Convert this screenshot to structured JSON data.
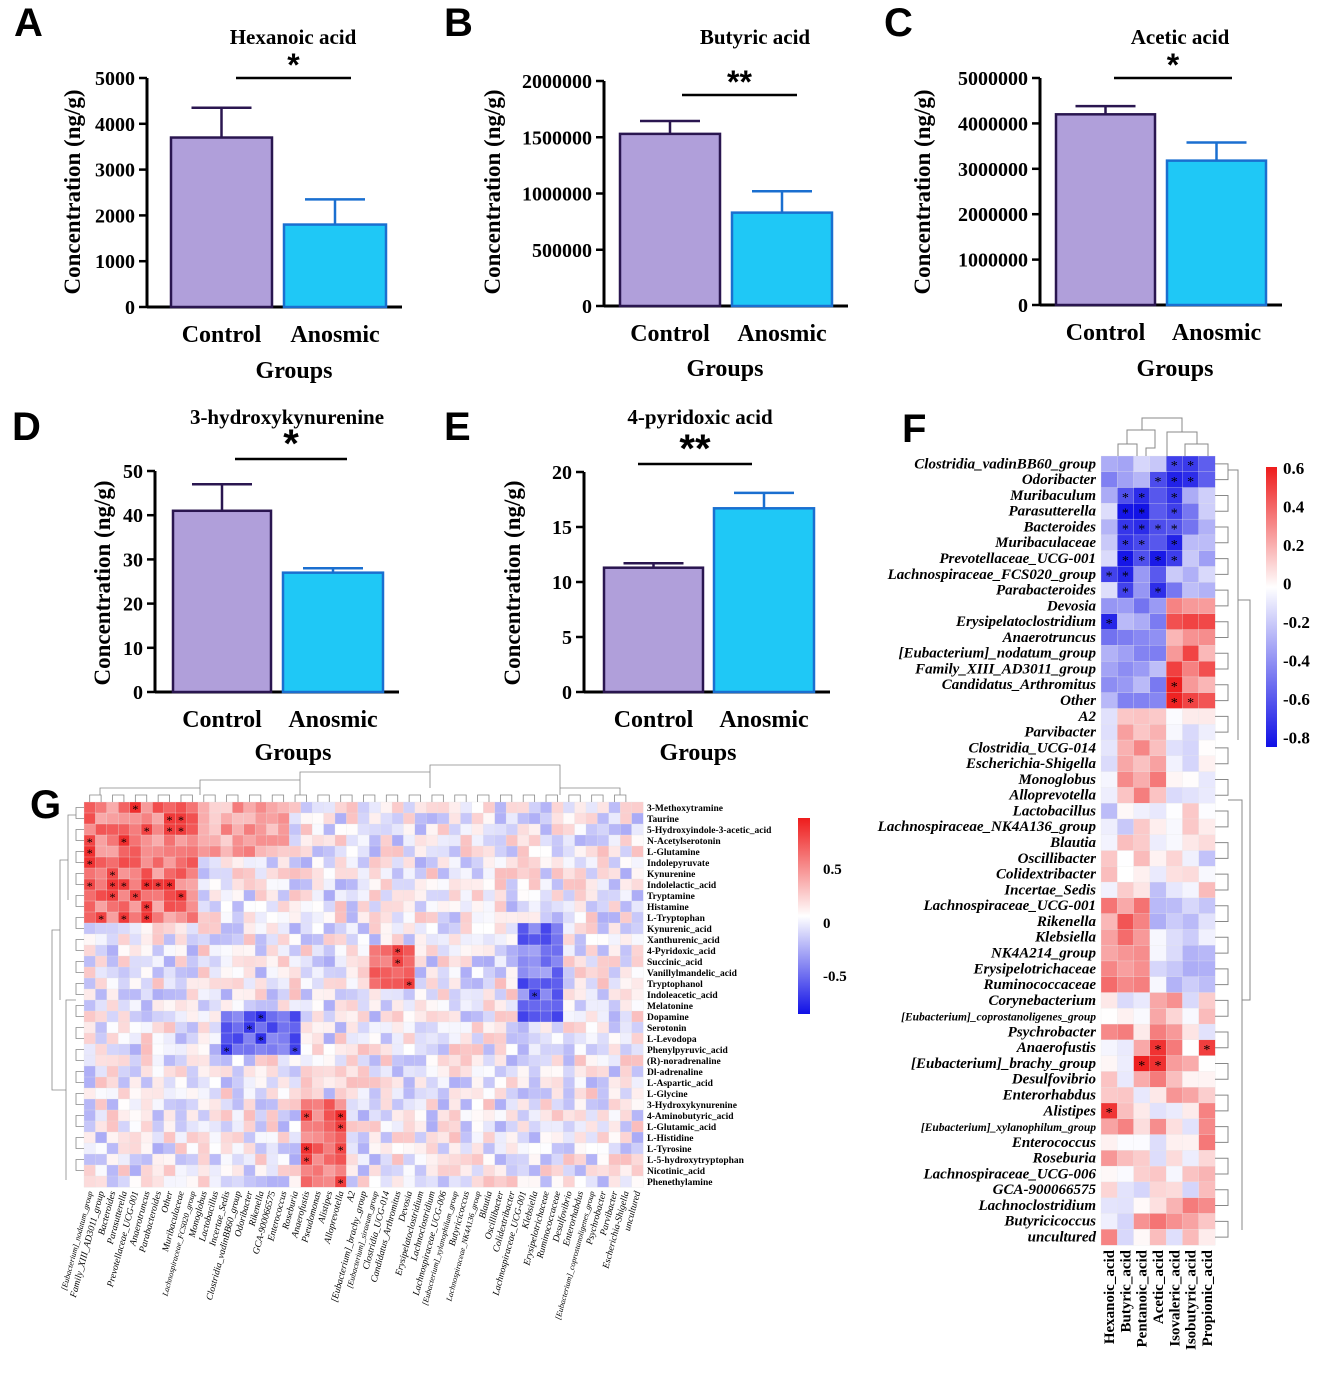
{
  "colors": {
    "control": "#b09fda",
    "anosmic": "#1fc8f6",
    "control_stroke": "#2a1650",
    "anosmic_stroke": "#1a6fd0",
    "heat_pos": "#ee1c1c",
    "heat_neg": "#1010e6"
  },
  "chart_data": [
    {
      "panel": "A",
      "type": "bar",
      "title": "Hexanoic acid",
      "categories": [
        "Control",
        "Anosmic"
      ],
      "values": [
        3700,
        1800
      ],
      "errors": [
        650,
        550
      ],
      "ylim": [
        0,
        5000
      ],
      "yticks": [
        0,
        1000,
        2000,
        3000,
        4000,
        5000
      ],
      "ylabel": "Concentration (ng/g)",
      "xlabel": "Groups",
      "significance": "*"
    },
    {
      "panel": "B",
      "type": "bar",
      "title": "Butyric acid",
      "categories": [
        "Control",
        "Anosmic"
      ],
      "values": [
        1530000,
        830000
      ],
      "errors": [
        115000,
        190000
      ],
      "ylim": [
        0,
        2000000
      ],
      "yticks": [
        0,
        500000,
        1000000,
        1500000,
        2000000
      ],
      "ylabel": "Concentration (ng/g)",
      "xlabel": "Groups",
      "significance": "**"
    },
    {
      "panel": "C",
      "type": "bar",
      "title": "Acetic acid",
      "categories": [
        "Control",
        "Anosmic"
      ],
      "values": [
        4200000,
        3180000
      ],
      "errors": [
        180000,
        400000
      ],
      "ylim": [
        0,
        5000000
      ],
      "yticks": [
        0,
        1000000,
        2000000,
        3000000,
        4000000,
        5000000
      ],
      "ylabel": "Concentration (ng/g)",
      "xlabel": "Groups",
      "significance": "*"
    },
    {
      "panel": "D",
      "type": "bar",
      "title": "3-hydroxykynurenine",
      "categories": [
        "Control",
        "Anosmic"
      ],
      "values": [
        41,
        27
      ],
      "errors": [
        6,
        1
      ],
      "ylim": [
        0,
        50
      ],
      "yticks": [
        0,
        10,
        20,
        30,
        40,
        50
      ],
      "ylabel": "Concentration (ng/g)",
      "xlabel": "Groups",
      "significance": "*"
    },
    {
      "panel": "E",
      "type": "bar",
      "title": "4-pyridoxic acid",
      "categories": [
        "Control",
        "Anosmic"
      ],
      "values": [
        11.3,
        16.7
      ],
      "errors": [
        0.4,
        1.4
      ],
      "ylim": [
        0,
        20
      ],
      "yticks": [
        0,
        5,
        10,
        15,
        20
      ],
      "ylabel": "Concentration (ng/g)",
      "xlabel": "Groups",
      "significance": "**"
    },
    {
      "panel": "F",
      "type": "heatmap",
      "rows": [
        "Clostridia_vadinBB60_group",
        "Odoribacter",
        "Muribaculum",
        "Parasutterella",
        "Bacteroides",
        "Muribaculaceae",
        "Prevotellaceae_UCG-001",
        "Lachnospiraceae_FCS020_group",
        "Parabacteroides",
        "Devosia",
        "Erysipelatoclostridium",
        "Anaerotruncus",
        "[Eubacterium]_nodatum_group",
        "Family_XIII_AD3011_group",
        "Candidatus_Arthromitus",
        "Other",
        "A2",
        "Parvibacter",
        "Clostridia_UCG-014",
        "Escherichia-Shigella",
        "Monoglobus",
        "Alloprevotella",
        "Lactobacillus",
        "Lachnospiraceae_NK4A136_group",
        "Blautia",
        "Oscillibacter",
        "Colidextribacter",
        "Incertae_Sedis",
        "Lachnospiraceae_UCG-001",
        "Rikenella",
        "Klebsiella",
        "NK4A214_group",
        "Erysipelotrichaceae",
        "Ruminococcaceae",
        "Corynebacterium",
        "[Eubacterium]_coprostanoligenes_group",
        "Psychrobacter",
        "Anaerofustis",
        "[Eubacterium]_brachy_group",
        "Desulfovibrio",
        "Enterorhabdus",
        "Alistipes",
        "[Eubacterium]_xylanophilum_group",
        "Enterococcus",
        "Roseburia",
        "Lachnospiraceae_UCG-006",
        "GCA-900066575",
        "Lachnoclostridium",
        "Butyricicoccus",
        "uncultured"
      ],
      "columns": [
        "Hexanoic_acid",
        "Butyric_acid",
        "Pentanoic_acid",
        "Acetic_acid",
        "Isovaleric_acid",
        "Isobutyric_acid",
        "Propionic_acid"
      ],
      "legend_ticks": [
        "0.6",
        "0.4",
        "0.2",
        "0",
        "-0.2",
        "-0.4",
        "-0.6",
        "-0.8"
      ],
      "range": [
        -0.85,
        0.65
      ]
    },
    {
      "panel": "G",
      "type": "heatmap",
      "rows": [
        "3-Methoxytramine",
        "Taurine",
        "5-Hydroxyindole-3-acetic_acid",
        "N-Acetylserotonin",
        "L-Glutamine",
        "Indolepyruvate",
        "Kynurenine",
        "Indolelactic_acid",
        "Tryptamine",
        "Histamine",
        "L-Tryptophan",
        "Kynurenic_acid",
        "Xanthurenic_acid",
        "4-Pyridoxic_acid",
        "Succinic_acid",
        "Vanillylmandelic_acid",
        "Tryptophanol",
        "Indoleacetic_acid",
        "Melatonine",
        "Dopamine",
        "Serotonin",
        "L-Levodopa",
        "Phenylpyruvic_acid",
        "(R)-noradrenaline",
        "Dl-adrenaline",
        "L-Aspartic_acid",
        "L-Glycine",
        "3-Hydroxykynurenine",
        "4-Aminobutyric_acid",
        "L-Glutamic_acid",
        "L-Histidine",
        "L-Tyrosine",
        "L-5-hydroxytryptophan",
        "Nicotinic_acid",
        "Phenethylamine"
      ],
      "columns": [
        "[Eubacterium]_nodatum_group",
        "Family_XIII_AD3011_group",
        "Bacteroides",
        "Parasutterella",
        "Prevotellaceae_UCG-001",
        "Anaerotruncus",
        "Parabacteroides",
        "Other",
        "Muribaculaceae",
        "Lachnospiraceae_FCS020_group",
        "Monoglobus",
        "Lactobacillus",
        "Incertae_Sedis",
        "Clostridia_vadinBB60_group",
        "Odoribacter",
        "Rikenella",
        "GCA-900066575",
        "Enterococcus",
        "Roseburia",
        "Anaerofustis",
        "Pseudomonas",
        "Alistipes",
        "Alloprevotella",
        "A2",
        "[Eubacterium]_brachy_group",
        "[Eubacterium]_siraeum_group",
        "Clostridia_UCG-014",
        "Candidatus_Arthromitus",
        "Devosia",
        "Erysipelatoclostridium",
        "Lachnoclostridium",
        "Lachnospiraceae_UCG-006",
        "[Eubacterium]_xylanophilum_group",
        "Butyricicoccus",
        "Lachnospiraceae_NK4A136_group",
        "Blautia",
        "Oscillibacter",
        "Colidextribacter",
        "Lachnospiraceae_UCG-001",
        "Klebsiella",
        "Erysipelotrichaceae",
        "Ruminococcaceae",
        "Desulfovibrio",
        "Enterorhabdus",
        "[Eubacterium]_coprostanoligenes_group",
        "Psychrobacter",
        "Parvibacter",
        "Escherichia-Shigella",
        "uncultured"
      ],
      "legend_ticks": [
        "0.5",
        "0",
        "-0.5"
      ],
      "range": [
        -0.85,
        0.85
      ]
    }
  ]
}
